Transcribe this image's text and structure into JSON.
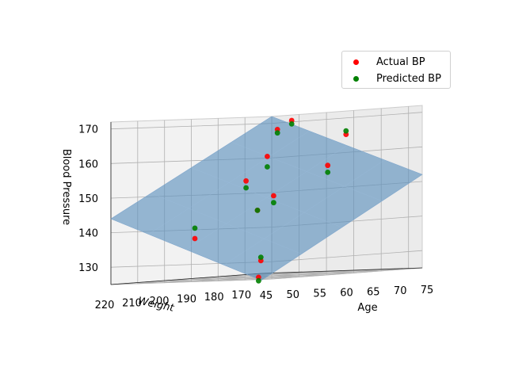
{
  "chart_data": {
    "type": "scatter",
    "projection": "3d",
    "title": "",
    "xlabel": "Age",
    "ylabel": "Weight",
    "zlabel": "Blood Pressure",
    "xlim": [
      45,
      75
    ],
    "ylim": [
      165,
      220
    ],
    "zlim": [
      125,
      172
    ],
    "x_ticks": [
      45,
      50,
      55,
      60,
      65,
      70,
      75
    ],
    "y_ticks": [
      170,
      180,
      190,
      200,
      210,
      220
    ],
    "z_ticks": [
      130,
      140,
      150,
      160,
      170
    ],
    "grid": true,
    "legend_position": "upper right",
    "colors": {
      "actual": "#ff0000",
      "predicted": "#008000",
      "surface": "#5b8fbd",
      "pane": "#f2f2f2",
      "pane_edge": "#cccccc",
      "grid": "#b0b0b0"
    },
    "surface": {
      "label": "",
      "corners": [
        {
          "age": 45,
          "weight": 165,
          "bp": 123
        },
        {
          "age": 75,
          "weight": 165,
          "bp": 152
        },
        {
          "age": 45,
          "weight": 220,
          "bp": 144
        },
        {
          "age": 75,
          "weight": 220,
          "bp": 172
        }
      ]
    },
    "series": [
      {
        "name": "Actual BP",
        "color": "#ff0000",
        "points": [
          {
            "age": 46,
            "weight": 168,
            "bp": 124
          },
          {
            "age": 50,
            "weight": 175,
            "bp": 129
          },
          {
            "age": 53,
            "weight": 205,
            "bp": 137
          },
          {
            "age": 56,
            "weight": 188,
            "bp": 144
          },
          {
            "age": 58,
            "weight": 186,
            "bp": 148
          },
          {
            "age": 60,
            "weight": 200,
            "bp": 153
          },
          {
            "age": 64,
            "weight": 178,
            "bp": 156
          },
          {
            "age": 66,
            "weight": 204,
            "bp": 160
          },
          {
            "age": 68,
            "weight": 199,
            "bp": 170
          },
          {
            "age": 71,
            "weight": 185,
            "bp": 165
          },
          {
            "age": 73,
            "weight": 214,
            "bp": 168
          }
        ]
      },
      {
        "name": "Predicted BP",
        "color": "#008000",
        "points": [
          {
            "age": 46,
            "weight": 168,
            "bp": 123
          },
          {
            "age": 50,
            "weight": 175,
            "bp": 130
          },
          {
            "age": 53,
            "weight": 205,
            "bp": 140
          },
          {
            "age": 56,
            "weight": 188,
            "bp": 144
          },
          {
            "age": 58,
            "weight": 186,
            "bp": 146
          },
          {
            "age": 60,
            "weight": 200,
            "bp": 151
          },
          {
            "age": 64,
            "weight": 178,
            "bp": 154
          },
          {
            "age": 66,
            "weight": 204,
            "bp": 157
          },
          {
            "age": 68,
            "weight": 199,
            "bp": 169
          },
          {
            "age": 71,
            "weight": 185,
            "bp": 166
          },
          {
            "age": 73,
            "weight": 214,
            "bp": 167
          }
        ]
      }
    ]
  }
}
